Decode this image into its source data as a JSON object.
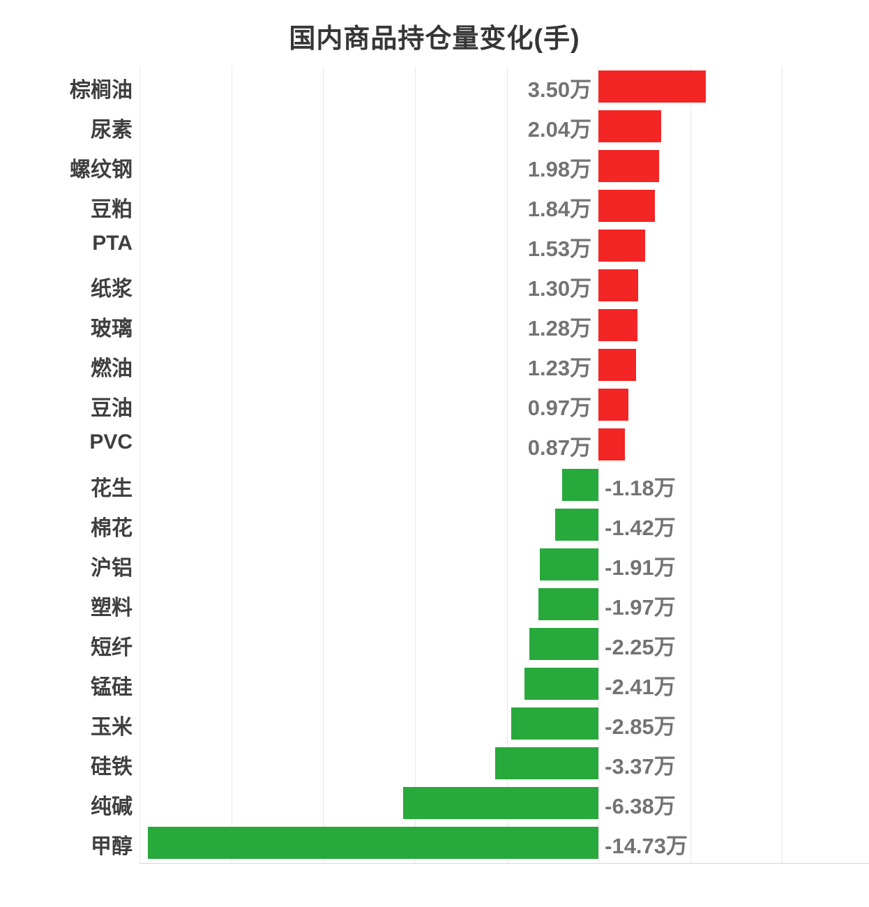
{
  "chart_data": {
    "type": "bar",
    "orientation": "horizontal",
    "title": "国内商品持仓量变化(手)",
    "unit": "万",
    "categories": [
      "棕榈油",
      "尿素",
      "螺纹钢",
      "豆粕",
      "PTA",
      "纸浆",
      "玻璃",
      "燃油",
      "豆油",
      "PVC",
      "花生",
      "棉花",
      "沪铝",
      "塑料",
      "短纤",
      "锰硅",
      "玉米",
      "硅铁",
      "纯碱",
      "甲醇"
    ],
    "values": [
      3.5,
      2.04,
      1.98,
      1.84,
      1.53,
      1.3,
      1.28,
      1.23,
      0.97,
      0.87,
      -1.18,
      -1.42,
      -1.91,
      -1.97,
      -2.25,
      -2.41,
      -2.85,
      -3.37,
      -6.38,
      -14.73
    ],
    "labels": [
      "3.50万",
      "2.04万",
      "1.98万",
      "1.84万",
      "1.53万",
      "1.30万",
      "1.28万",
      "1.23万",
      "0.97万",
      "0.87万",
      "-1.18万",
      "-1.42万",
      "-1.91万",
      "-1.97万",
      "-2.25万",
      "-2.41万",
      "-2.85万",
      "-3.37万",
      "-6.38万",
      "-14.73万"
    ],
    "xlim": [
      -15,
      9
    ],
    "grid_step": 3,
    "grid": true,
    "legend": "none",
    "colors": {
      "positive_bar": "#f42525",
      "negative_bar": "#28a93c",
      "title_text": "#363636",
      "category_label": "#3f3f3f",
      "value_label": "#737373",
      "gridline": "#e8e8e8",
      "axis_line": "#d9d9d9"
    }
  }
}
